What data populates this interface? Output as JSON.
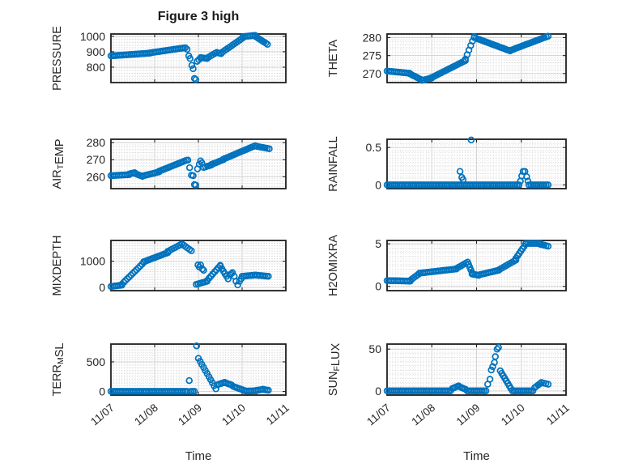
{
  "figure": {
    "title": "Figure 3 high",
    "background": "#ffffff",
    "marker_color": "#0072BD",
    "axis_color": "#1f1f1f",
    "text_color": "#262626",
    "major_grid_color": "#d2d2d2",
    "minor_grid_color": "#c6c6c6"
  },
  "time_axis": {
    "label": "Time",
    "xlim": [
      0,
      4
    ],
    "tick_positions": [
      0,
      1,
      2,
      3,
      4
    ],
    "tick_labels": [
      "11/07",
      "11/08",
      "11/09",
      "11/10",
      "11/11"
    ],
    "minor_step": 0.0625
  },
  "chart_data": [
    {
      "name": "pressure",
      "type": "scatter",
      "ylabel": "PRESSURE",
      "ylabel_parts": [
        {
          "t": "PRESSURE",
          "sub": false
        }
      ],
      "yticks": [
        800,
        900,
        1000
      ],
      "ytick_labels": [
        "800",
        "900",
        "1000"
      ],
      "ylim": [
        700,
        1015
      ],
      "minor_y_step": 20,
      "segments": [
        [
          0,
          0.9,
          873,
          891,
          22
        ],
        [
          0.9,
          1.7,
          893,
          926,
          20
        ],
        [
          1.74,
          1.74,
          916,
          916,
          1
        ],
        [
          1.78,
          1.78,
          873,
          873,
          1
        ],
        [
          1.81,
          1.81,
          856,
          856,
          1
        ],
        [
          1.85,
          1.85,
          812,
          812,
          1
        ],
        [
          1.88,
          1.88,
          790,
          790,
          1
        ],
        [
          1.91,
          1.91,
          727,
          727,
          1
        ],
        [
          1.94,
          1.94,
          720,
          720,
          1
        ],
        [
          1.97,
          2.05,
          838,
          858,
          3
        ],
        [
          2.05,
          2.2,
          862,
          856,
          5
        ],
        [
          2.2,
          2.42,
          860,
          896,
          6
        ],
        [
          2.42,
          2.52,
          894,
          888,
          3
        ],
        [
          2.52,
          3.02,
          892,
          990,
          13
        ],
        [
          3.02,
          3.3,
          998,
          1006,
          8
        ],
        [
          3.3,
          3.58,
          1000,
          948,
          8
        ]
      ]
    },
    {
      "name": "theta",
      "type": "scatter",
      "ylabel": "THETA",
      "ylabel_parts": [
        {
          "t": "THETA",
          "sub": false
        }
      ],
      "yticks": [
        270,
        275,
        280
      ],
      "ytick_labels": [
        "270",
        "275",
        "280"
      ],
      "ylim": [
        267.5,
        281
      ],
      "minor_y_step": 1,
      "segments": [
        [
          0,
          0.5,
          270.7,
          270.1,
          13
        ],
        [
          0.5,
          0.78,
          270.0,
          268.2,
          8
        ],
        [
          0.78,
          1.0,
          268.1,
          268.8,
          6
        ],
        [
          1.0,
          1.75,
          268.9,
          273.6,
          19
        ],
        [
          1.75,
          1.95,
          274.0,
          280.3,
          6
        ],
        [
          1.95,
          2.75,
          280.0,
          276.3,
          20
        ],
        [
          2.75,
          3.6,
          276.4,
          280.4,
          21
        ]
      ]
    },
    {
      "name": "air-temp",
      "type": "scatter",
      "ylabel": "AIR_TEMP",
      "ylabel_parts": [
        {
          "t": "AIR",
          "sub": false
        },
        {
          "t": "T",
          "sub": true
        },
        {
          "t": "EMP",
          "sub": false
        }
      ],
      "yticks": [
        260,
        270,
        280
      ],
      "ytick_labels": [
        "260",
        "270",
        "280"
      ],
      "ylim": [
        253,
        282
      ],
      "minor_y_step": 2,
      "segments": [
        [
          0,
          0.42,
          260.6,
          261.2,
          11
        ],
        [
          0.42,
          0.54,
          261.6,
          262.4,
          4
        ],
        [
          0.54,
          0.72,
          262.0,
          260.2,
          5
        ],
        [
          0.72,
          1.1,
          260.4,
          262.8,
          10
        ],
        [
          1.1,
          1.72,
          263.2,
          269.6,
          16
        ],
        [
          1.76,
          1.76,
          269.8,
          269.8,
          1
        ],
        [
          1.8,
          1.8,
          265.3,
          265.3,
          1
        ],
        [
          1.84,
          1.84,
          260.9,
          260.9,
          1
        ],
        [
          1.88,
          1.88,
          260.6,
          260.6,
          1
        ],
        [
          1.91,
          1.91,
          255.4,
          255.4,
          1
        ],
        [
          1.94,
          1.94,
          255.1,
          255.1,
          1
        ],
        [
          1.98,
          1.98,
          264.6,
          264.6,
          1
        ],
        [
          2.02,
          2.02,
          267.4,
          267.4,
          1
        ],
        [
          2.05,
          2.05,
          269.3,
          269.3,
          1
        ],
        [
          2.08,
          2.08,
          268.1,
          268.1,
          1
        ],
        [
          2.12,
          2.3,
          265.4,
          266.9,
          5
        ],
        [
          2.3,
          2.57,
          267.2,
          270.0,
          7
        ],
        [
          2.57,
          3.3,
          270.3,
          278.2,
          18
        ],
        [
          3.3,
          3.62,
          278.0,
          276.4,
          8
        ]
      ]
    },
    {
      "name": "rainfall",
      "type": "scatter",
      "ylabel": "RAINFALL",
      "ylabel_parts": [
        {
          "t": "RAINFALL",
          "sub": false
        }
      ],
      "yticks": [
        0,
        0.5
      ],
      "ytick_labels": [
        "0",
        "0.5"
      ],
      "ylim": [
        -0.05,
        0.61
      ],
      "minor_y_step": 0.05,
      "segments": [
        [
          0,
          2.95,
          0,
          0,
          71
        ],
        [
          3.17,
          3.6,
          0,
          0,
          11
        ],
        [
          1.63,
          1.63,
          0.18,
          0.18,
          1
        ],
        [
          1.67,
          1.67,
          0.1,
          0.1,
          1
        ],
        [
          1.7,
          1.7,
          0.07,
          0.07,
          1
        ],
        [
          1.88,
          1.88,
          0.6,
          0.6,
          1
        ],
        [
          2.98,
          2.98,
          0.05,
          0.05,
          1
        ],
        [
          3.01,
          3.01,
          0.12,
          0.12,
          1
        ],
        [
          3.04,
          3.04,
          0.18,
          0.18,
          1
        ],
        [
          3.08,
          3.08,
          0.18,
          0.18,
          1
        ],
        [
          3.12,
          3.12,
          0.11,
          0.11,
          1
        ],
        [
          3.15,
          3.15,
          0.05,
          0.05,
          1
        ]
      ]
    },
    {
      "name": "mixdepth",
      "type": "scatter",
      "ylabel": "MIXDEPTH",
      "ylabel_parts": [
        {
          "t": "MIXDEPTH",
          "sub": false
        }
      ],
      "yticks": [
        0,
        1000
      ],
      "ytick_labels": [
        "0",
        "1000"
      ],
      "ylim": [
        -130,
        1800
      ],
      "minor_y_step": 100,
      "segments": [
        [
          0,
          0.25,
          30,
          80,
          7
        ],
        [
          0.25,
          0.75,
          120,
          950,
          13
        ],
        [
          0.75,
          1.3,
          980,
          1330,
          14
        ],
        [
          1.3,
          1.62,
          1380,
          1660,
          8
        ],
        [
          1.62,
          1.84,
          1670,
          1400,
          6
        ],
        [
          1.99,
          1.99,
          860,
          860,
          1
        ],
        [
          2.02,
          2.02,
          775,
          775,
          1
        ],
        [
          2.05,
          2.05,
          860,
          860,
          1
        ],
        [
          2.09,
          2.09,
          700,
          700,
          1
        ],
        [
          2.12,
          2.12,
          650,
          650,
          1
        ],
        [
          1.95,
          2.2,
          110,
          230,
          7
        ],
        [
          2.2,
          2.5,
          260,
          840,
          8
        ],
        [
          2.5,
          2.68,
          820,
          320,
          6
        ],
        [
          2.72,
          2.78,
          480,
          560,
          3
        ],
        [
          2.82,
          2.82,
          420,
          420,
          1
        ],
        [
          2.86,
          2.86,
          230,
          230,
          1
        ],
        [
          2.9,
          2.9,
          90,
          90,
          1
        ],
        [
          2.94,
          2.98,
          230,
          330,
          2
        ],
        [
          3.0,
          3.3,
          420,
          470,
          8
        ],
        [
          3.3,
          3.6,
          470,
          420,
          8
        ]
      ]
    },
    {
      "name": "h2omixra",
      "type": "scatter",
      "ylabel": "H2OMIXRA",
      "ylabel_parts": [
        {
          "t": "H2OMIXRA",
          "sub": false
        }
      ],
      "yticks": [
        0,
        5
      ],
      "ytick_labels": [
        "0",
        "5"
      ],
      "ylim": [
        -0.5,
        5.4
      ],
      "minor_y_step": 0.5,
      "segments": [
        [
          0,
          0.52,
          0.68,
          0.62,
          14
        ],
        [
          0.52,
          0.72,
          0.72,
          1.5,
          6
        ],
        [
          0.72,
          1.55,
          1.55,
          2.05,
          21
        ],
        [
          1.55,
          1.8,
          2.1,
          2.85,
          7
        ],
        [
          1.82,
          1.9,
          2.6,
          1.6,
          4
        ],
        [
          1.9,
          2.05,
          1.45,
          1.3,
          5
        ],
        [
          2.05,
          2.5,
          1.35,
          1.9,
          12
        ],
        [
          2.5,
          2.88,
          1.95,
          3.1,
          10
        ],
        [
          2.88,
          3.1,
          3.3,
          5.0,
          7
        ],
        [
          3.1,
          3.42,
          5.05,
          5.05,
          8
        ],
        [
          3.42,
          3.6,
          4.95,
          4.72,
          5
        ]
      ]
    },
    {
      "name": "terr-msl",
      "type": "scatter",
      "ylabel": "TERR_MSL",
      "ylabel_parts": [
        {
          "t": "TERR",
          "sub": false
        },
        {
          "t": "M",
          "sub": true
        },
        {
          "t": "SL",
          "sub": false
        }
      ],
      "yticks": [
        0,
        500
      ],
      "ytick_labels": [
        "0",
        "500"
      ],
      "ylim": [
        -60,
        800
      ],
      "minor_y_step": 50,
      "segments": [
        [
          0,
          1.74,
          3,
          3,
          42
        ],
        [
          1.79,
          1.79,
          185,
          185,
          1
        ],
        [
          1.83,
          1.91,
          3,
          3,
          3
        ],
        [
          1.96,
          1.96,
          770,
          770,
          1
        ],
        [
          2.0,
          2.4,
          560,
          45,
          11
        ],
        [
          2.44,
          2.6,
          115,
          155,
          5
        ],
        [
          2.6,
          2.76,
          150,
          110,
          5
        ],
        [
          2.8,
          3.08,
          85,
          10,
          8
        ],
        [
          3.08,
          3.32,
          8,
          12,
          7
        ],
        [
          3.32,
          3.48,
          18,
          38,
          5
        ],
        [
          3.48,
          3.6,
          34,
          22,
          4
        ]
      ]
    },
    {
      "name": "sun-flux",
      "type": "scatter",
      "ylabel": "SUN_FLUX",
      "ylabel_parts": [
        {
          "t": "SUN",
          "sub": false
        },
        {
          "t": "F",
          "sub": true
        },
        {
          "t": "LUX",
          "sub": false
        }
      ],
      "yticks": [
        0,
        50
      ],
      "ytick_labels": [
        "0",
        "50"
      ],
      "ylim": [
        -5,
        56
      ],
      "minor_y_step": 5,
      "segments": [
        [
          0,
          1.42,
          0,
          0,
          35
        ],
        [
          1.46,
          1.6,
          3,
          6,
          5
        ],
        [
          1.6,
          1.75,
          5.5,
          2,
          5
        ],
        [
          1.79,
          2.21,
          0,
          0,
          11
        ],
        [
          2.25,
          2.25,
          8,
          8,
          1
        ],
        [
          2.3,
          2.3,
          14,
          14,
          1
        ],
        [
          2.33,
          2.33,
          25,
          25,
          1
        ],
        [
          2.36,
          2.36,
          29,
          29,
          1
        ],
        [
          2.4,
          2.4,
          34,
          34,
          1
        ],
        [
          2.42,
          2.42,
          41,
          41,
          1
        ],
        [
          2.46,
          2.46,
          50,
          50,
          1
        ],
        [
          2.49,
          2.49,
          52,
          52,
          1
        ],
        [
          2.53,
          2.8,
          24,
          0,
          9
        ],
        [
          2.84,
          3.26,
          0,
          0,
          11
        ],
        [
          3.3,
          3.45,
          4,
          10,
          5
        ],
        [
          3.45,
          3.6,
          10,
          8,
          4
        ]
      ]
    }
  ]
}
